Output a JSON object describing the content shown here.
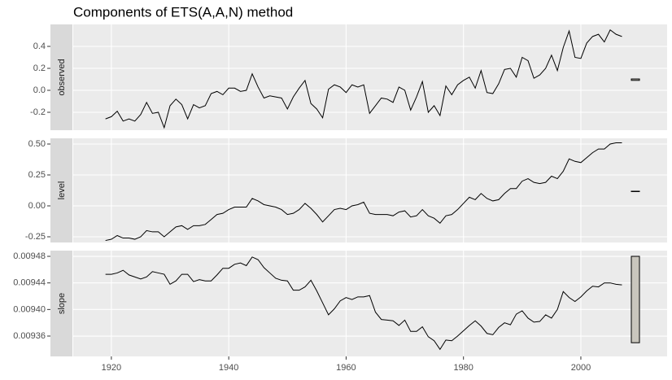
{
  "chart_data": {
    "type": "line",
    "title": "Components of ETS(A,A,N) method",
    "color": "#000000",
    "panel_color": "#ebebeb",
    "strip_color": "#d9d9d9",
    "grid": true,
    "range_bar_color": "#c9c6bd",
    "xlim": [
      1913.5,
      2014.7
    ],
    "xticks": [
      1920,
      1940,
      1960,
      1980,
      2000
    ],
    "x": [
      1919,
      1920,
      1921,
      1922,
      1923,
      1924,
      1925,
      1926,
      1927,
      1928,
      1929,
      1930,
      1931,
      1932,
      1933,
      1934,
      1935,
      1936,
      1937,
      1938,
      1939,
      1940,
      1941,
      1942,
      1943,
      1944,
      1945,
      1946,
      1947,
      1948,
      1949,
      1950,
      1951,
      1952,
      1953,
      1954,
      1955,
      1956,
      1957,
      1958,
      1959,
      1960,
      1961,
      1962,
      1963,
      1964,
      1965,
      1966,
      1967,
      1968,
      1969,
      1970,
      1971,
      1972,
      1973,
      1974,
      1975,
      1976,
      1977,
      1978,
      1979,
      1980,
      1981,
      1982,
      1983,
      1984,
      1985,
      1986,
      1987,
      1988,
      1989,
      1990,
      1991,
      1992,
      1993,
      1994,
      1995,
      1996,
      1997,
      1998,
      1999,
      2000,
      2001,
      2002,
      2003,
      2004,
      2005,
      2006,
      2007
    ],
    "facets": [
      {
        "name": "observed",
        "ylim": [
          -0.363,
          0.6
        ],
        "yticks": [
          -0.2,
          {
            "value": 0,
            "label": "0.0"
          },
          0.2,
          0.4
        ],
        "range_bar": [
          0.0905,
          0.1035
        ],
        "values": [
          -0.26,
          -0.24,
          -0.19,
          -0.28,
          -0.26,
          -0.28,
          -0.22,
          -0.11,
          -0.21,
          -0.2,
          -0.34,
          -0.14,
          -0.08,
          -0.13,
          -0.26,
          -0.13,
          -0.16,
          -0.14,
          -0.03,
          -0.01,
          -0.04,
          0.02,
          0.02,
          -0.01,
          0.0,
          0.15,
          0.03,
          -0.07,
          -0.05,
          -0.06,
          -0.07,
          -0.17,
          -0.06,
          0.02,
          0.09,
          -0.12,
          -0.17,
          -0.25,
          0.01,
          0.05,
          0.03,
          -0.02,
          0.05,
          0.03,
          0.05,
          -0.21,
          -0.14,
          -0.07,
          -0.08,
          -0.11,
          0.03,
          0.0,
          -0.18,
          -0.06,
          0.08,
          -0.2,
          -0.14,
          -0.23,
          0.04,
          -0.04,
          0.05,
          0.09,
          0.12,
          0.02,
          0.18,
          -0.02,
          -0.03,
          0.06,
          0.19,
          0.2,
          0.12,
          0.3,
          0.27,
          0.11,
          0.14,
          0.2,
          0.32,
          0.18,
          0.39,
          0.54,
          0.3,
          0.29,
          0.43,
          0.49,
          0.51,
          0.44,
          0.55,
          0.51,
          0.49
        ]
      },
      {
        "name": "level",
        "ylim": [
          -0.296,
          0.546
        ],
        "yticks": [
          -0.25,
          {
            "value": 0,
            "label": "0.00"
          },
          0.25,
          {
            "value": 0.5,
            "label": "0.50"
          }
        ],
        "range_bar": [
          0.1155,
          0.1185
        ],
        "values": [
          -0.28,
          -0.27,
          -0.24,
          -0.26,
          -0.26,
          -0.27,
          -0.25,
          -0.2,
          -0.21,
          -0.21,
          -0.25,
          -0.21,
          -0.17,
          -0.16,
          -0.19,
          -0.16,
          -0.16,
          -0.15,
          -0.11,
          -0.07,
          -0.06,
          -0.03,
          -0.01,
          -0.01,
          -0.01,
          0.06,
          0.04,
          0.01,
          0.0,
          -0.01,
          -0.03,
          -0.07,
          -0.06,
          -0.03,
          0.02,
          -0.02,
          -0.07,
          -0.13,
          -0.08,
          -0.03,
          -0.02,
          -0.03,
          0.0,
          0.01,
          0.03,
          -0.06,
          -0.07,
          -0.07,
          -0.07,
          -0.08,
          -0.05,
          -0.04,
          -0.09,
          -0.08,
          -0.03,
          -0.08,
          -0.1,
          -0.14,
          -0.08,
          -0.07,
          -0.03,
          0.02,
          0.07,
          0.05,
          0.1,
          0.06,
          0.04,
          0.05,
          0.1,
          0.14,
          0.14,
          0.2,
          0.22,
          0.19,
          0.18,
          0.19,
          0.24,
          0.22,
          0.28,
          0.38,
          0.36,
          0.35,
          0.39,
          0.43,
          0.46,
          0.46,
          0.5,
          0.51,
          0.51
        ]
      },
      {
        "name": "slope",
        "ylim": [
          0.0093294,
          0.0094886
        ],
        "yticks": [
          0.00936,
          {
            "value": 0.0094,
            "label": "0.00940"
          },
          0.00944,
          0.00948
        ],
        "range_bar": [
          0.00935,
          0.00948
        ],
        "values": [
          0.009453,
          0.009453,
          0.009455,
          0.009459,
          0.009452,
          0.009449,
          0.009446,
          0.009449,
          0.009457,
          0.009455,
          0.009453,
          0.009438,
          0.009443,
          0.009453,
          0.009453,
          0.009442,
          0.009445,
          0.009443,
          0.009443,
          0.009452,
          0.009462,
          0.009462,
          0.009468,
          0.00947,
          0.009466,
          0.009479,
          0.009475,
          0.009463,
          0.009455,
          0.009447,
          0.009444,
          0.009443,
          0.009429,
          0.009429,
          0.009434,
          0.009444,
          0.009428,
          0.00941,
          0.009392,
          0.009401,
          0.009413,
          0.009418,
          0.009415,
          0.009419,
          0.009419,
          0.009421,
          0.009396,
          0.009385,
          0.009384,
          0.009383,
          0.009376,
          0.009384,
          0.009367,
          0.009367,
          0.009374,
          0.009359,
          0.009353,
          0.00934,
          0.009354,
          0.009353,
          0.00936,
          0.009368,
          0.009376,
          0.009383,
          0.009375,
          0.009364,
          0.009362,
          0.009373,
          0.00938,
          0.009377,
          0.009393,
          0.009398,
          0.009387,
          0.009381,
          0.009382,
          0.009392,
          0.009387,
          0.0094,
          0.009427,
          0.009418,
          0.009412,
          0.009419,
          0.009428,
          0.009435,
          0.009434,
          0.00944,
          0.00944,
          0.009438,
          0.009437
        ]
      }
    ]
  }
}
